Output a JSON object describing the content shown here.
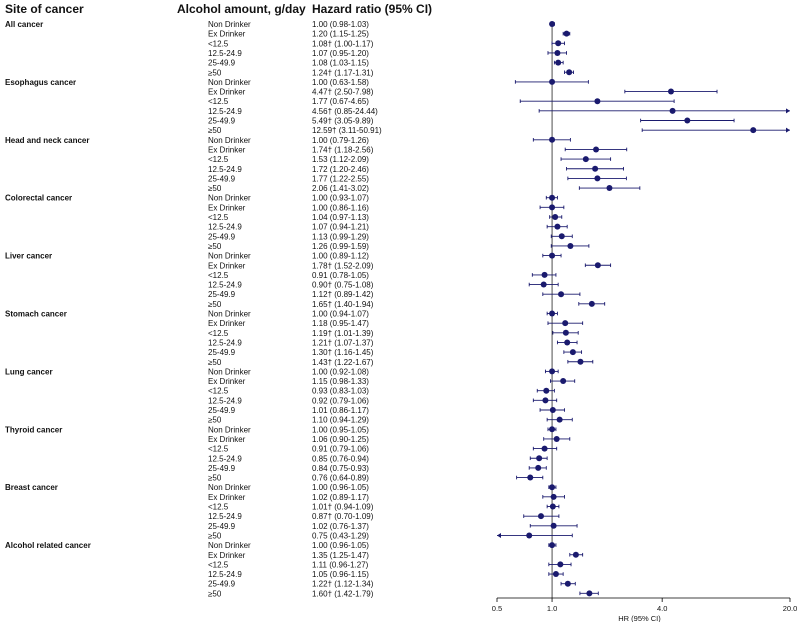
{
  "headers": {
    "site": "Site of cancer",
    "amount": "Alcohol amount, g/day",
    "hr": "Hazard ratio (95% CI)"
  },
  "chart_data": {
    "type": "forest",
    "xscale": "log2",
    "xlim": [
      0.5,
      20.0
    ],
    "reference_line": 1.0,
    "xticks": [
      0.5,
      1.0,
      4.0,
      20.0
    ],
    "xtick_labels": [
      "0.5",
      "1.0",
      "4.0",
      "20.0"
    ],
    "xlabel": "HR (95% CI)",
    "groups": [
      {
        "name": "All cancer",
        "rows": [
          {
            "label": "Non Drinker",
            "text": "1.00 (0.98-1.03)",
            "hr": 1.0,
            "lo": 0.98,
            "hi": 1.03
          },
          {
            "label": "Ex Drinker",
            "text": "1.20 (1.15-1.25)",
            "hr": 1.2,
            "lo": 1.15,
            "hi": 1.25
          },
          {
            "label": "<12.5",
            "text": "1.08† (1.00-1.17)",
            "hr": 1.08,
            "lo": 1.0,
            "hi": 1.17
          },
          {
            "label": "12.5-24.9",
            "text": "1.07 (0.95-1.20)",
            "hr": 1.07,
            "lo": 0.95,
            "hi": 1.2
          },
          {
            "label": "25-49.9",
            "text": "1.08 (1.03-1.15)",
            "hr": 1.08,
            "lo": 1.03,
            "hi": 1.15
          },
          {
            "label": "≥50",
            "text": "1.24† (1.17-1.31)",
            "hr": 1.24,
            "lo": 1.17,
            "hi": 1.31
          }
        ]
      },
      {
        "name": "Esophagus cancer",
        "rows": [
          {
            "label": "Non Drinker",
            "text": "1.00 (0.63-1.58)",
            "hr": 1.0,
            "lo": 0.63,
            "hi": 1.58
          },
          {
            "label": "Ex Drinker",
            "text": "4.47† (2.50-7.98)",
            "hr": 4.47,
            "lo": 2.5,
            "hi": 7.98
          },
          {
            "label": "<12.5",
            "text": "1.77 (0.67-4.65)",
            "hr": 1.77,
            "lo": 0.67,
            "hi": 4.65
          },
          {
            "label": "12.5-24.9",
            "text": "4.56† (0.85-24.44)",
            "hr": 4.56,
            "lo": 0.85,
            "hi": 24.44
          },
          {
            "label": "25-49.9",
            "text": "5.49† (3.05-9.89)",
            "hr": 5.49,
            "lo": 3.05,
            "hi": 9.89
          },
          {
            "label": "≥50",
            "text": "12.59† (3.11-50.91)",
            "hr": 12.59,
            "lo": 3.11,
            "hi": 50.91
          }
        ]
      },
      {
        "name": "Head and neck cancer",
        "rows": [
          {
            "label": "Non Drinker",
            "text": "1.00 (0.79-1.26)",
            "hr": 1.0,
            "lo": 0.79,
            "hi": 1.26
          },
          {
            "label": "Ex Drinker",
            "text": "1.74† (1.18-2.56)",
            "hr": 1.74,
            "lo": 1.18,
            "hi": 2.56
          },
          {
            "label": "<12.5",
            "text": "1.53 (1.12-2.09)",
            "hr": 1.53,
            "lo": 1.12,
            "hi": 2.09
          },
          {
            "label": "12.5-24.9",
            "text": "1.72 (1.20-2.46)",
            "hr": 1.72,
            "lo": 1.2,
            "hi": 2.46
          },
          {
            "label": "25-49.9",
            "text": "1.77 (1.22-2.55)",
            "hr": 1.77,
            "lo": 1.22,
            "hi": 2.55
          },
          {
            "label": "≥50",
            "text": "2.06 (1.41-3.02)",
            "hr": 2.06,
            "lo": 1.41,
            "hi": 3.02
          }
        ]
      },
      {
        "name": "Colorectal cancer",
        "rows": [
          {
            "label": "Non Drinker",
            "text": "1.00 (0.93-1.07)",
            "hr": 1.0,
            "lo": 0.93,
            "hi": 1.07
          },
          {
            "label": "Ex Drinker",
            "text": "1.00 (0.86-1.16)",
            "hr": 1.0,
            "lo": 0.86,
            "hi": 1.16
          },
          {
            "label": "<12.5",
            "text": "1.04 (0.97-1.13)",
            "hr": 1.04,
            "lo": 0.97,
            "hi": 1.13
          },
          {
            "label": "12.5-24.9",
            "text": "1.07 (0.94-1.21)",
            "hr": 1.07,
            "lo": 0.94,
            "hi": 1.21
          },
          {
            "label": "25-49.9",
            "text": "1.13 (0.99-1.29)",
            "hr": 1.13,
            "lo": 0.99,
            "hi": 1.29
          },
          {
            "label": "≥50",
            "text": "1.26 (0.99-1.59)",
            "hr": 1.26,
            "lo": 0.99,
            "hi": 1.59
          }
        ]
      },
      {
        "name": "Liver cancer",
        "rows": [
          {
            "label": "Non Drinker",
            "text": "1.00 (0.89-1.12)",
            "hr": 1.0,
            "lo": 0.89,
            "hi": 1.12
          },
          {
            "label": "Ex Drinker",
            "text": "1.78† (1.52-2.09)",
            "hr": 1.78,
            "lo": 1.52,
            "hi": 2.09
          },
          {
            "label": "<12.5",
            "text": "0.91 (0.78-1.05)",
            "hr": 0.91,
            "lo": 0.78,
            "hi": 1.05
          },
          {
            "label": "12.5-24.9",
            "text": "0.90† (0.75-1.08)",
            "hr": 0.9,
            "lo": 0.75,
            "hi": 1.08
          },
          {
            "label": "25-49.9",
            "text": "1.12† (0.89-1.42)",
            "hr": 1.12,
            "lo": 0.89,
            "hi": 1.42
          },
          {
            "label": "≥50",
            "text": "1.65† (1.40-1.94)",
            "hr": 1.65,
            "lo": 1.4,
            "hi": 1.94
          }
        ]
      },
      {
        "name": "Stomach cancer",
        "rows": [
          {
            "label": "Non Drinker",
            "text": "1.00 (0.94-1.07)",
            "hr": 1.0,
            "lo": 0.94,
            "hi": 1.07
          },
          {
            "label": "Ex Drinker",
            "text": "1.18 (0.95-1.47)",
            "hr": 1.18,
            "lo": 0.95,
            "hi": 1.47
          },
          {
            "label": "<12.5",
            "text": "1.19† (1.01-1.39)",
            "hr": 1.19,
            "lo": 1.01,
            "hi": 1.39
          },
          {
            "label": "12.5-24.9",
            "text": "1.21† (1.07-1.37)",
            "hr": 1.21,
            "lo": 1.07,
            "hi": 1.37
          },
          {
            "label": "25-49.9",
            "text": "1.30† (1.16-1.45)",
            "hr": 1.3,
            "lo": 1.16,
            "hi": 1.45
          },
          {
            "label": "≥50",
            "text": "1.43† (1.22-1.67)",
            "hr": 1.43,
            "lo": 1.22,
            "hi": 1.67
          }
        ]
      },
      {
        "name": "Lung cancer",
        "rows": [
          {
            "label": "Non Drinker",
            "text": "1.00 (0.92-1.08)",
            "hr": 1.0,
            "lo": 0.92,
            "hi": 1.08
          },
          {
            "label": "Ex Drinker",
            "text": "1.15 (0.98-1.33)",
            "hr": 1.15,
            "lo": 0.98,
            "hi": 1.33
          },
          {
            "label": "<12.5",
            "text": "0.93 (0.83-1.03)",
            "hr": 0.93,
            "lo": 0.83,
            "hi": 1.03
          },
          {
            "label": "12.5-24.9",
            "text": "0.92 (0.79-1.06)",
            "hr": 0.92,
            "lo": 0.79,
            "hi": 1.06
          },
          {
            "label": "25-49.9",
            "text": "1.01 (0.86-1.17)",
            "hr": 1.01,
            "lo": 0.86,
            "hi": 1.17
          },
          {
            "label": "≥50",
            "text": "1.10 (0.94-1.29)",
            "hr": 1.1,
            "lo": 0.94,
            "hi": 1.29
          }
        ]
      },
      {
        "name": "Thyroid cancer",
        "rows": [
          {
            "label": "Non Drinker",
            "text": "1.00 (0.95-1.05)",
            "hr": 1.0,
            "lo": 0.95,
            "hi": 1.05
          },
          {
            "label": "Ex Drinker",
            "text": "1.06 (0.90-1.25)",
            "hr": 1.06,
            "lo": 0.9,
            "hi": 1.25
          },
          {
            "label": "<12.5",
            "text": "0.91 (0.79-1.06)",
            "hr": 0.91,
            "lo": 0.79,
            "hi": 1.06
          },
          {
            "label": "12.5-24.9",
            "text": "0.85 (0.76-0.94)",
            "hr": 0.85,
            "lo": 0.76,
            "hi": 0.94
          },
          {
            "label": "25-49.9",
            "text": "0.84 (0.75-0.93)",
            "hr": 0.84,
            "lo": 0.75,
            "hi": 0.93
          },
          {
            "label": "≥50",
            "text": "0.76 (0.64-0.89)",
            "hr": 0.76,
            "lo": 0.64,
            "hi": 0.89
          }
        ]
      },
      {
        "name": "Breast cancer",
        "rows": [
          {
            "label": "Non Drinker",
            "text": "1.00 (0.96-1.05)",
            "hr": 1.0,
            "lo": 0.96,
            "hi": 1.05
          },
          {
            "label": "Ex Drinker",
            "text": "1.02 (0.89-1.17)",
            "hr": 1.02,
            "lo": 0.89,
            "hi": 1.17
          },
          {
            "label": "<12.5",
            "text": "1.01† (0.94-1.09)",
            "hr": 1.01,
            "lo": 0.94,
            "hi": 1.09
          },
          {
            "label": "12.5-24.9",
            "text": "0.87† (0.70-1.09)",
            "hr": 0.87,
            "lo": 0.7,
            "hi": 1.09
          },
          {
            "label": "25-49.9",
            "text": "1.02 (0.76-1.37)",
            "hr": 1.02,
            "lo": 0.76,
            "hi": 1.37
          },
          {
            "label": "≥50",
            "text": "0.75 (0.43-1.29)",
            "hr": 0.75,
            "lo": 0.43,
            "hi": 1.29
          }
        ]
      },
      {
        "name": "Alcohol related cancer",
        "rows": [
          {
            "label": "Non Drinker",
            "text": "1.00 (0.96-1.05)",
            "hr": 1.0,
            "lo": 0.96,
            "hi": 1.05
          },
          {
            "label": "Ex Drinker",
            "text": "1.35 (1.25-1.47)",
            "hr": 1.35,
            "lo": 1.25,
            "hi": 1.47
          },
          {
            "label": "<12.5",
            "text": "1.11 (0.96-1.27)",
            "hr": 1.11,
            "lo": 0.96,
            "hi": 1.27
          },
          {
            "label": "12.5-24.9",
            "text": "1.05 (0.96-1.15)",
            "hr": 1.05,
            "lo": 0.96,
            "hi": 1.15
          },
          {
            "label": "25-49.9",
            "text": "1.22† (1.12-1.34)",
            "hr": 1.22,
            "lo": 1.12,
            "hi": 1.34
          },
          {
            "label": "≥50",
            "text": "1.60† (1.42-1.79)",
            "hr": 1.6,
            "lo": 1.42,
            "hi": 1.79
          }
        ]
      }
    ]
  },
  "colors": {
    "marker": "#1a1a6e",
    "ci_line": "#1a1a6e",
    "axis": "#000000",
    "reference": "#000000"
  }
}
